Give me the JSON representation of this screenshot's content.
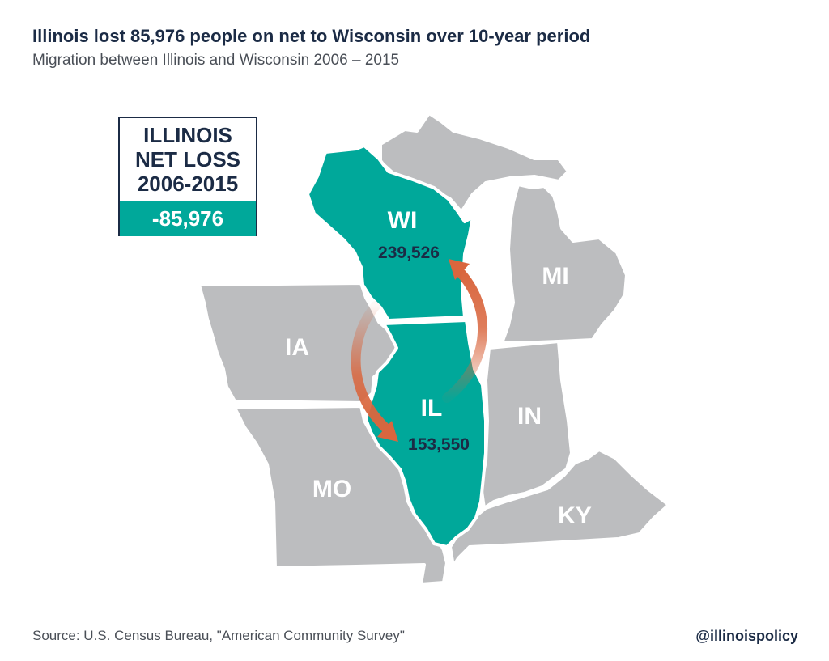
{
  "title": "Illinois lost 85,976 people on net to Wisconsin over 10-year period",
  "subtitle": "Migration between Illinois and Wisconsin 2006 – 2015",
  "net_loss": {
    "lines": [
      "ILLINOIS",
      "NET LOSS",
      "2006-2015"
    ],
    "value": "-85,976"
  },
  "states": {
    "WI": {
      "label": "WI",
      "value": "239,526"
    },
    "IL": {
      "label": "IL",
      "value": "153,550"
    },
    "IA": {
      "label": "IA"
    },
    "MI": {
      "label": "MI"
    },
    "IN": {
      "label": "IN"
    },
    "MO": {
      "label": "MO"
    },
    "KY": {
      "label": "KY"
    }
  },
  "colors": {
    "highlight": "#00a89a",
    "other_states": "#bcbdbf",
    "arrow": "#d9663e",
    "text_dark": "#1b2b45"
  },
  "footer": {
    "source": "Source: U.S. Census Bureau, \"American Community Survey\"",
    "handle": "@illinoispolicy"
  }
}
